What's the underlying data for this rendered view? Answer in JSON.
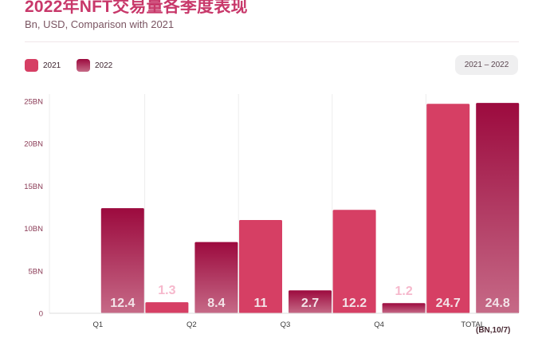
{
  "title": "2022年NFT交易量各季度表现",
  "subtitle": "Bn, USD, Comparison with 2021",
  "range_pill": "2021 – 2022",
  "footnote": "(BN,10/7)",
  "colors": {
    "series_2021": "#d63f64",
    "series_2022_top": "#9c0a3e",
    "series_2022_bottom": "#c66a87",
    "label_light": "#f6b8cc",
    "label_dark": "#f3e3e8",
    "grid": "#ececec"
  },
  "chart_data": {
    "type": "bar",
    "categories": [
      "Q1",
      "Q2",
      "Q3",
      "Q4",
      "TOTAL"
    ],
    "series": [
      {
        "name": "2021",
        "values": [
          null,
          1.3,
          11,
          12.2,
          24.7
        ],
        "labels": [
          "",
          "1.3",
          "11",
          "12.2",
          "24.7"
        ]
      },
      {
        "name": "2022",
        "values": [
          12.4,
          8.4,
          2.7,
          1.2,
          24.8
        ],
        "labels": [
          "12.4",
          "8.4",
          "2.7",
          "1.2",
          "24.8"
        ]
      }
    ],
    "ylim": [
      0,
      25
    ],
    "yticks": [
      0,
      5,
      10,
      15,
      20,
      25
    ],
    "ytick_labels": [
      "0",
      "5BN",
      "10BN",
      "15BN",
      "20BN",
      "25BN"
    ],
    "grid": true,
    "legend": "top-left"
  }
}
